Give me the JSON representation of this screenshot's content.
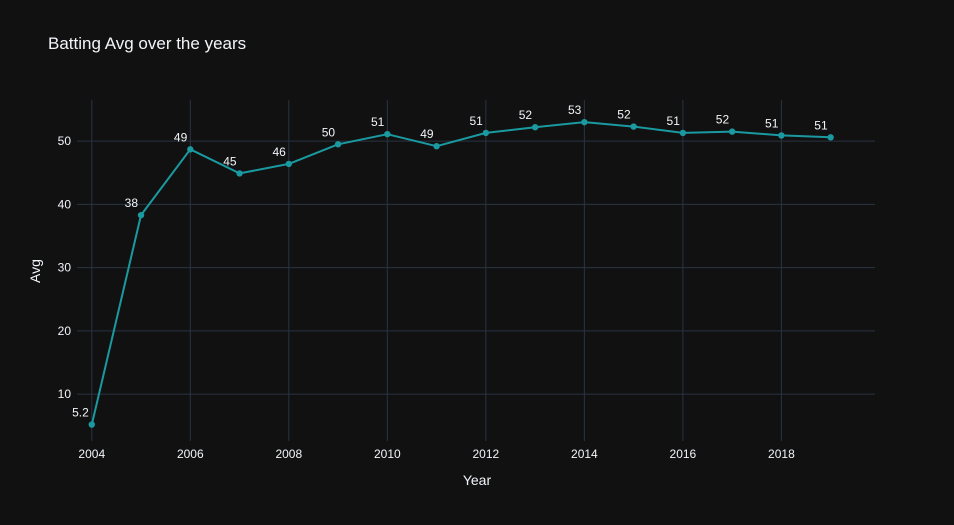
{
  "chart_data": {
    "type": "line",
    "title": "Batting Avg over the years",
    "xlabel": "Year",
    "ylabel": "Avg",
    "x": [
      2004,
      2005,
      2006,
      2007,
      2008,
      2009,
      2010,
      2011,
      2012,
      2013,
      2014,
      2015,
      2016,
      2017,
      2018,
      2019
    ],
    "series": [
      {
        "values": [
          5.2,
          38.3,
          48.7,
          44.9,
          46.4,
          49.5,
          51.1,
          49.2,
          51.3,
          52.2,
          53.0,
          52.3,
          51.3,
          51.5,
          50.9,
          50.6
        ]
      }
    ],
    "data_labels": [
      "5.2",
      "38",
      "49",
      "45",
      "46",
      "50",
      "51",
      "49",
      "51",
      "52",
      "53",
      "52",
      "51",
      "52",
      "51",
      "51"
    ],
    "x_ticks": [
      "2004",
      "2006",
      "2008",
      "2010",
      "2012",
      "2014",
      "2016",
      "2018"
    ],
    "y_ticks": [
      "10",
      "20",
      "30",
      "40",
      "50"
    ],
    "xlim": [
      2003.7,
      2019.9
    ],
    "ylim": [
      2.6,
      56.5
    ],
    "grid": true,
    "colors": {
      "background": "#111111",
      "line": "#1a9aa0",
      "grid": "#283442",
      "text": "#f2f5fa"
    }
  }
}
